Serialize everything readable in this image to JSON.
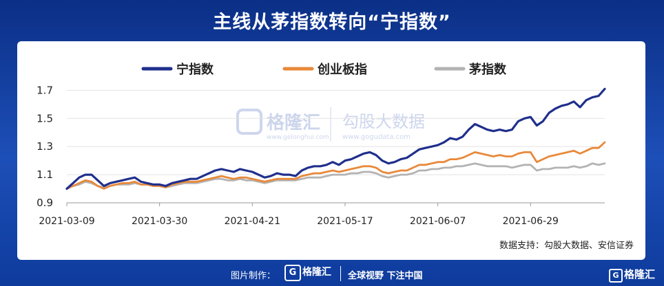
{
  "page_title": "主线从茅指数转向“宁指数”",
  "source_note": "数据支持：勾股大数据、安信证券",
  "watermark": {
    "brand": "格隆汇",
    "brand_url": "www.gelonghui.com",
    "partner": "勾股大数据",
    "partner_url": "www.gogudata.com"
  },
  "footer": {
    "credit_label": "图片制作：",
    "credit_logo": "格隆汇",
    "credit_logo_mark": "G",
    "slogan": "全球视野 下注中国",
    "corner_logo": "格隆汇",
    "corner_logo_mark": "G"
  },
  "colors": {
    "background": "#1a46ad",
    "ning": "#1f2f8c",
    "chuangye": "#e8893a",
    "mao": "#b3b3b3"
  },
  "chart_data": {
    "type": "line",
    "x_tick_labels": [
      "2021-03-09",
      "2021-03-30",
      "2021-04-21",
      "2021-05-17",
      "2021-06-07",
      "2021-06-29"
    ],
    "x_tick_index": [
      0,
      15,
      30,
      45,
      60,
      75
    ],
    "y_ticks": [
      "0.9",
      "1.1",
      "1.3",
      "1.5",
      "1.7"
    ],
    "ylim": [
      0.9,
      1.78
    ],
    "grid": "horizontal",
    "legend": "top",
    "series": [
      {
        "name": "宁指数",
        "color": "#1f2f8c",
        "values": [
          1.0,
          1.04,
          1.08,
          1.1,
          1.1,
          1.06,
          1.02,
          1.04,
          1.05,
          1.06,
          1.07,
          1.08,
          1.05,
          1.04,
          1.03,
          1.03,
          1.02,
          1.04,
          1.05,
          1.06,
          1.07,
          1.07,
          1.09,
          1.11,
          1.13,
          1.14,
          1.13,
          1.12,
          1.14,
          1.13,
          1.12,
          1.1,
          1.08,
          1.09,
          1.11,
          1.1,
          1.1,
          1.09,
          1.13,
          1.15,
          1.16,
          1.16,
          1.17,
          1.19,
          1.17,
          1.2,
          1.21,
          1.23,
          1.25,
          1.26,
          1.24,
          1.2,
          1.18,
          1.19,
          1.21,
          1.22,
          1.25,
          1.28,
          1.29,
          1.3,
          1.31,
          1.33,
          1.36,
          1.35,
          1.37,
          1.42,
          1.46,
          1.44,
          1.42,
          1.41,
          1.42,
          1.41,
          1.42,
          1.48,
          1.5,
          1.51,
          1.45,
          1.48,
          1.54,
          1.57,
          1.59,
          1.6,
          1.62,
          1.58,
          1.63,
          1.65,
          1.66,
          1.71
        ]
      },
      {
        "name": "创业板指",
        "color": "#e8893a",
        "values": [
          1.0,
          1.02,
          1.04,
          1.06,
          1.05,
          1.02,
          1.0,
          1.02,
          1.03,
          1.04,
          1.04,
          1.05,
          1.03,
          1.03,
          1.02,
          1.02,
          1.01,
          1.03,
          1.04,
          1.05,
          1.05,
          1.05,
          1.06,
          1.07,
          1.08,
          1.09,
          1.08,
          1.07,
          1.08,
          1.08,
          1.07,
          1.06,
          1.05,
          1.06,
          1.07,
          1.07,
          1.07,
          1.07,
          1.09,
          1.1,
          1.11,
          1.11,
          1.12,
          1.13,
          1.12,
          1.13,
          1.14,
          1.15,
          1.16,
          1.16,
          1.15,
          1.12,
          1.11,
          1.12,
          1.13,
          1.13,
          1.15,
          1.17,
          1.17,
          1.18,
          1.19,
          1.19,
          1.21,
          1.21,
          1.22,
          1.24,
          1.26,
          1.25,
          1.24,
          1.23,
          1.24,
          1.23,
          1.23,
          1.25,
          1.26,
          1.26,
          1.19,
          1.21,
          1.23,
          1.24,
          1.25,
          1.26,
          1.27,
          1.25,
          1.27,
          1.29,
          1.29,
          1.33
        ]
      },
      {
        "name": "茅指数",
        "color": "#b3b3b3",
        "values": [
          1.0,
          1.02,
          1.03,
          1.05,
          1.04,
          1.02,
          1.01,
          1.02,
          1.03,
          1.03,
          1.03,
          1.04,
          1.03,
          1.03,
          1.02,
          1.02,
          1.01,
          1.02,
          1.03,
          1.04,
          1.04,
          1.04,
          1.05,
          1.06,
          1.07,
          1.07,
          1.06,
          1.06,
          1.07,
          1.06,
          1.06,
          1.05,
          1.04,
          1.05,
          1.06,
          1.06,
          1.06,
          1.06,
          1.07,
          1.08,
          1.08,
          1.08,
          1.09,
          1.1,
          1.1,
          1.1,
          1.11,
          1.11,
          1.12,
          1.12,
          1.11,
          1.09,
          1.08,
          1.09,
          1.1,
          1.1,
          1.11,
          1.13,
          1.13,
          1.14,
          1.14,
          1.15,
          1.15,
          1.16,
          1.16,
          1.17,
          1.18,
          1.17,
          1.16,
          1.16,
          1.16,
          1.16,
          1.15,
          1.16,
          1.17,
          1.17,
          1.13,
          1.14,
          1.14,
          1.15,
          1.15,
          1.15,
          1.16,
          1.15,
          1.16,
          1.18,
          1.17,
          1.18
        ]
      }
    ]
  }
}
